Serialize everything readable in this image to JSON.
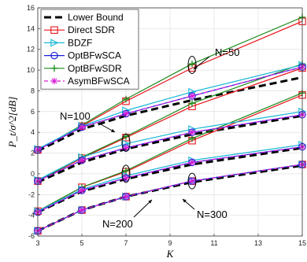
{
  "chart_data": {
    "type": "line",
    "xlabel": "K",
    "ylabel": "P_t/σ^2[dB]",
    "xlim": [
      3,
      15
    ],
    "ylim": [
      -6,
      16
    ],
    "xticks": [
      3,
      5,
      7,
      9,
      11,
      13,
      15
    ],
    "yticks": [
      -6,
      -4,
      -2,
      0,
      2,
      4,
      6,
      8,
      10,
      12,
      14,
      16
    ],
    "grid": true,
    "legend_position": "top-left",
    "x": [
      3,
      5,
      7,
      10,
      15
    ],
    "series": [
      {
        "name": "Lower Bound",
        "color": "#000000",
        "style": "dashed",
        "marker": "none",
        "groups": {
          "N=50": [
            2.2,
            4.3,
            5.6,
            7.1,
            9.3
          ],
          "N=100": [
            -0.8,
            1.1,
            2.4,
            3.8,
            5.6
          ],
          "N=200": [
            -3.7,
            -1.7,
            -0.5,
            0.9,
            2.5
          ],
          "N=300": [
            -5.5,
            -3.5,
            -2.2,
            -0.8,
            0.8
          ]
        }
      },
      {
        "name": "Direct SDR",
        "color": "#e8141b",
        "style": "solid",
        "marker": "square",
        "groups": {
          "N=50": [
            2.3,
            4.6,
            7.0,
            10.2,
            14.7
          ],
          "N=100": [
            -0.7,
            1.5,
            3.5,
            6.5,
            10.2
          ],
          "N=200": [
            -3.6,
            -1.3,
            0.2,
            3.2,
            7.6
          ],
          "N=300": [
            -5.5,
            -3.5,
            -2.2,
            -0.7,
            0.9
          ]
        }
      },
      {
        "name": "BDZF",
        "color": "#17b7d4",
        "style": "solid",
        "marker": "triangle-right",
        "groups": {
          "N=50": [
            2.4,
            4.6,
            6.1,
            7.9,
            10.5
          ],
          "N=100": [
            -0.6,
            1.6,
            2.9,
            4.3,
            6.0
          ],
          "N=200": [
            -3.6,
            -1.5,
            -0.2,
            1.3,
            2.8
          ],
          "N=300": [
            -5.5,
            -3.5,
            -2.2,
            -0.7,
            0.9
          ]
        }
      },
      {
        "name": "OptBFwSCA",
        "color": "#1b1be0",
        "style": "solid",
        "marker": "circle",
        "groups": {
          "N=50": [
            2.3,
            4.5,
            5.8,
            7.5,
            10.3
          ],
          "N=100": [
            -0.7,
            1.3,
            2.5,
            4.0,
            5.7
          ],
          "N=200": [
            -3.7,
            -1.6,
            -0.4,
            1.1,
            2.6
          ],
          "N=300": [
            -5.5,
            -3.5,
            -2.2,
            -0.7,
            0.9
          ]
        }
      },
      {
        "name": "OptBFwSDR",
        "color": "#178a17",
        "style": "solid",
        "marker": "plus",
        "groups": {
          "N=50": [
            2.3,
            4.7,
            7.2,
            10.6,
            15.1
          ],
          "N=100": [
            -0.7,
            1.6,
            3.6,
            6.8,
            10.6
          ],
          "N=200": [
            -3.6,
            -1.3,
            0.3,
            3.4,
            7.8
          ],
          "N=300": [
            -5.5,
            -3.5,
            -2.2,
            -0.7,
            0.9
          ]
        }
      },
      {
        "name": "AsymBFwSCA",
        "color": "#d81bd8",
        "style": "dashed",
        "marker": "asterisk",
        "groups": {
          "N=50": [
            2.3,
            4.5,
            5.8,
            7.5,
            10.3
          ],
          "N=100": [
            -0.7,
            1.3,
            2.5,
            4.0,
            5.7
          ],
          "N=200": [
            -3.7,
            -1.6,
            -0.4,
            1.1,
            2.6
          ],
          "N=300": [
            -5.5,
            -3.5,
            -2.2,
            -0.7,
            0.9
          ]
        }
      }
    ],
    "annotations": [
      {
        "text": "N=50"
      },
      {
        "text": "N=100"
      },
      {
        "text": "N=200"
      },
      {
        "text": "N=300"
      }
    ]
  }
}
